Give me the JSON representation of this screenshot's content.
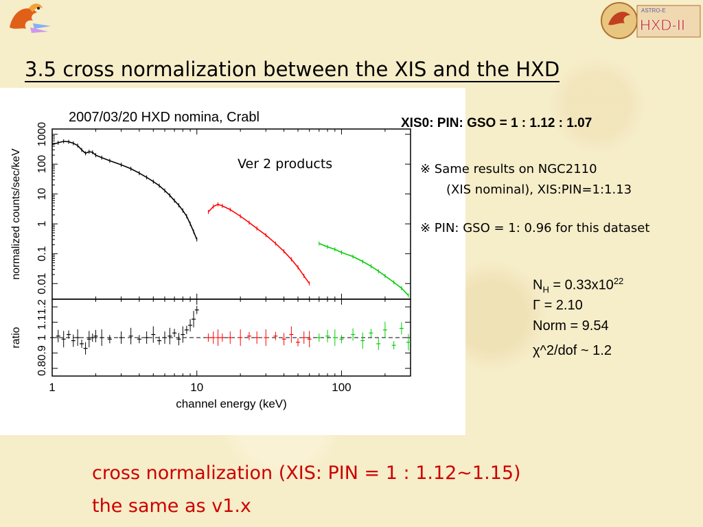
{
  "title": "3.5 cross normalization between the XIS and the HXD",
  "plot_caption": "2007/03/20 HXD nomina, Crabl",
  "plot_note": "Ver 2 products",
  "ratio_line": "XIS0: PIN: GSO = 1 : 1.12 : 1.07",
  "notes": [
    "※ Same results on NGC2110",
    "(XIS nominal), XIS:PIN=1:1.13",
    "※ PIN: GSO = 1: 0.96 for this dataset"
  ],
  "params": {
    "nh_prefix": "N",
    "nh_sub": "H",
    "nh_value": " = 0.33x10",
    "nh_exp": "22",
    "gamma": "Γ = 2.10",
    "norm": "Norm = 9.54",
    "chi": "χ^2/dof ~ 1.2"
  },
  "conclusion": [
    "cross normalization (XIS: PIN = 1 : 1.12~1.15)",
    "the same as v1.x"
  ],
  "logos": {
    "right_text": "HXD-II"
  },
  "chart_data": {
    "type": "scatter",
    "xlabel": "channel energy (keV)",
    "ylabel_top": "normalized counts/sec/keV",
    "ylabel_bottom": "ratio",
    "x_scale": "log",
    "xlim": [
      1,
      300
    ],
    "x_ticks": [
      "1",
      "10",
      "100"
    ],
    "top": {
      "y_scale": "log",
      "ylim": [
        0.003,
        1500
      ],
      "y_ticks": [
        "0.01",
        "0.1",
        "1",
        "10",
        "100",
        "1000"
      ]
    },
    "bottom": {
      "ylim": [
        0.75,
        1.25
      ],
      "y_ticks": [
        "0.8",
        "0.9",
        "1",
        "1.1",
        "1.2"
      ]
    },
    "series": [
      {
        "color": "#000000",
        "x": [
          1.0,
          1.1,
          1.2,
          1.3,
          1.4,
          1.5,
          1.6,
          1.7,
          1.8,
          1.9,
          2.0,
          2.2,
          2.5,
          3.0,
          3.5,
          4.0,
          4.5,
          5.0,
          5.5,
          6.0,
          6.5,
          7.0,
          7.5,
          8.0,
          8.5,
          9.0,
          9.5,
          10.0
        ],
        "y": [
          450,
          520,
          580,
          560,
          500,
          420,
          300,
          230,
          260,
          250,
          200,
          165,
          130,
          95,
          70,
          50,
          36,
          26,
          19,
          13,
          9,
          6,
          4.2,
          2.8,
          1.8,
          1.0,
          0.55,
          0.3
        ],
        "ratio": [
          1.0,
          1.01,
          0.99,
          1.02,
          0.98,
          1.0,
          0.96,
          0.93,
          0.99,
          1.0,
          1.01,
          1.0,
          0.99,
          1.0,
          1.01,
          0.99,
          1.0,
          1.02,
          0.98,
          1.0,
          1.01,
          1.03,
          0.99,
          1.02,
          1.05,
          1.08,
          1.12,
          1.18
        ]
      },
      {
        "color": "#ff0000",
        "x": [
          12,
          13,
          14,
          15,
          17,
          20,
          23,
          26,
          30,
          35,
          40,
          45,
          50,
          55,
          60
        ],
        "y": [
          2.5,
          3.8,
          4.5,
          4.0,
          3.0,
          1.8,
          1.1,
          0.7,
          0.42,
          0.22,
          0.12,
          0.065,
          0.035,
          0.018,
          0.01
        ],
        "ratio": [
          1.0,
          1.0,
          1.0,
          1.0,
          1.0,
          1.0,
          1.01,
          1.0,
          1.0,
          1.01,
          0.99,
          1.02,
          0.97,
          1.0,
          0.99
        ]
      },
      {
        "color": "#00cc00",
        "x": [
          70,
          80,
          90,
          100,
          120,
          140,
          160,
          180,
          200,
          230,
          260,
          290
        ],
        "y": [
          0.22,
          0.17,
          0.14,
          0.11,
          0.08,
          0.055,
          0.038,
          0.026,
          0.018,
          0.011,
          0.007,
          0.004
        ],
        "ratio": [
          1.0,
          1.01,
          1.0,
          0.99,
          1.02,
          0.98,
          1.03,
          0.96,
          1.05,
          0.95,
          1.06,
          0.97
        ]
      }
    ]
  }
}
